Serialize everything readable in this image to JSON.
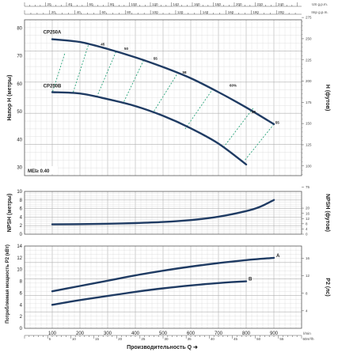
{
  "chart_data": [
    {
      "type": "line",
      "name": "head",
      "ylabel": "Напор H (метры)",
      "ylabel_right": "H (футов)",
      "ylim": [
        27,
        83
      ],
      "yticks": [
        30,
        40,
        50,
        60,
        70,
        80
      ],
      "yticks_right": [
        75,
        100,
        125,
        150,
        175,
        200,
        225,
        250,
        275
      ],
      "top_axis_us": {
        "label": "US g.p.m.",
        "ticks": [
          20,
          40,
          60,
          80,
          100,
          120,
          140,
          160,
          180,
          200,
          220,
          240
        ]
      },
      "top_axis_imp": {
        "label": "Imp g.p.m.",
        "ticks": [
          20,
          40,
          60,
          80,
          100,
          120,
          140,
          160,
          180,
          200
        ]
      },
      "series": [
        {
          "name": "CP250A",
          "x": [
            100,
            200,
            300,
            400,
            500,
            600,
            700,
            800,
            900
          ],
          "y": [
            76,
            75,
            72.5,
            69.5,
            66,
            62,
            57,
            51.5,
            45.5
          ]
        },
        {
          "name": "CP250B",
          "x": [
            100,
            200,
            300,
            400,
            500,
            600,
            700,
            800
          ],
          "y": [
            57,
            56.5,
            54.5,
            52,
            48.5,
            44,
            38.5,
            31
          ]
        }
      ],
      "efficiency_labels": [
        "45",
        "50",
        "55",
        "58",
        "60%",
        "58",
        "55"
      ],
      "annotation": "MEI≥ 0.40"
    },
    {
      "type": "line",
      "name": "npsh",
      "ylabel": "NPSH (метры)",
      "ylabel_right": "NPSH (футов)",
      "ylim": [
        0,
        10
      ],
      "yticks": [
        0,
        2,
        4,
        6,
        8,
        10
      ],
      "yticks_right": [
        0,
        4,
        8,
        12,
        16,
        20
      ],
      "series": [
        {
          "name": "",
          "x": [
            100,
            200,
            300,
            400,
            500,
            600,
            700,
            800,
            850,
            900
          ],
          "y": [
            2.3,
            2.35,
            2.45,
            2.6,
            2.85,
            3.3,
            4.1,
            5.4,
            6.4,
            8.0
          ]
        }
      ]
    },
    {
      "type": "line",
      "name": "power",
      "ylabel": "Потребляемая мощность P2 (кВт)",
      "ylabel_right": "P2 (лс)",
      "xlabel": "Производительность Q",
      "xlim": [
        0,
        1000
      ],
      "xticks": [
        100,
        200,
        300,
        400,
        500,
        600,
        700,
        800,
        900
      ],
      "x_unit": "l/min",
      "x2_unit": "m³/h",
      "x2_ticks": [
        5,
        10,
        15,
        20,
        25,
        30,
        35,
        40,
        45,
        50,
        55,
        60
      ],
      "ylim": [
        0,
        14
      ],
      "yticks": [
        0,
        2,
        4,
        6,
        8,
        10,
        12,
        14
      ],
      "yticks_right": [
        4,
        8,
        12,
        16
      ],
      "series": [
        {
          "name": "A",
          "x": [
            100,
            200,
            300,
            400,
            500,
            600,
            700,
            800,
            900
          ],
          "y": [
            6.3,
            7.2,
            8.1,
            9.0,
            9.8,
            10.5,
            11.1,
            11.6,
            12.0
          ]
        },
        {
          "name": "B",
          "x": [
            100,
            200,
            300,
            400,
            500,
            600,
            700,
            800
          ],
          "y": [
            4.0,
            4.8,
            5.5,
            6.2,
            6.8,
            7.3,
            7.7,
            8.0
          ]
        }
      ]
    }
  ]
}
